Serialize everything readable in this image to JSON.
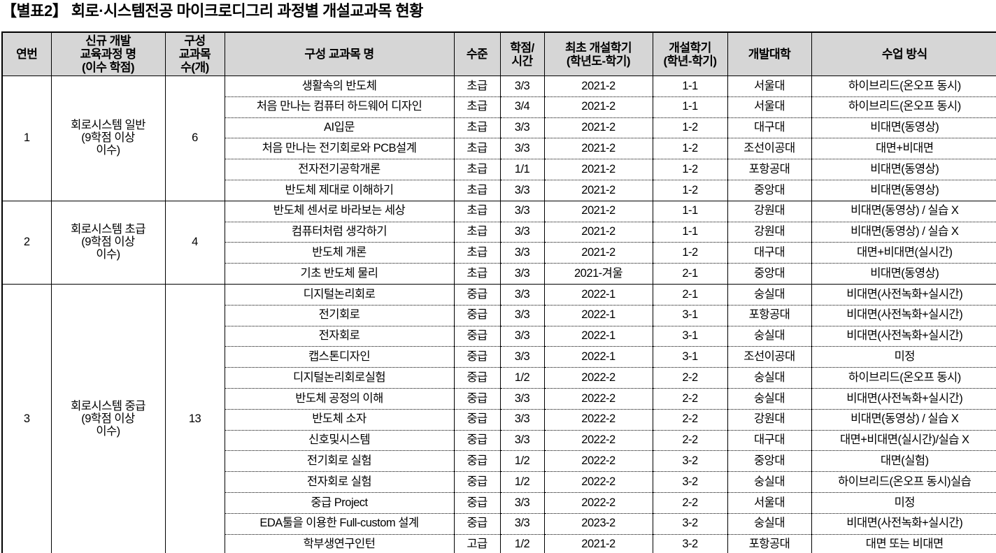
{
  "title": "【별표2】 회로·시스템전공 마이크로디그리 과정별 개설교과목 현황",
  "colors": {
    "header_bg": "#d6d6d6",
    "border": "#000000",
    "text": "#000000",
    "page_bg": "#ffffff"
  },
  "table": {
    "headers": [
      "연번",
      "신규 개발\n교육과정 명\n(이수 학점)",
      "구성\n교과목\n수(개)",
      "구성 교과목 명",
      "수준",
      "학점/\n시간",
      "최초 개설학기\n(학년도-학기)",
      "개설학기\n(학년-학기)",
      "개발대학",
      "수업 방식"
    ],
    "groups": [
      {
        "no": "1",
        "program": "회로시스템 일반\n(9학점 이상\n이수)",
        "count": "6",
        "courses": [
          {
            "name": "생활속의 반도체",
            "level": "초급",
            "credit": "3/3",
            "first": "2021-2",
            "term": "1-1",
            "univ": "서울대",
            "method": "하이브리드(온오프 동시)"
          },
          {
            "name": "처음 만나는 컴퓨터 하드웨어 디자인",
            "level": "초급",
            "credit": "3/4",
            "first": "2021-2",
            "term": "1-1",
            "univ": "서울대",
            "method": "하이브리드(온오프 동시)"
          },
          {
            "name": "AI입문",
            "level": "초급",
            "credit": "3/3",
            "first": "2021-2",
            "term": "1-2",
            "univ": "대구대",
            "method": "비대면(동영상)"
          },
          {
            "name": "처음 만나는 전기회로와 PCB설계",
            "level": "초급",
            "credit": "3/3",
            "first": "2021-2",
            "term": "1-2",
            "univ": "조선이공대",
            "method": "대면+비대면"
          },
          {
            "name": "전자전기공학개론",
            "level": "초급",
            "credit": "1/1",
            "first": "2021-2",
            "term": "1-2",
            "univ": "포항공대",
            "method": "비대면(동영상)"
          },
          {
            "name": "반도체 제대로 이해하기",
            "level": "초급",
            "credit": "3/3",
            "first": "2021-2",
            "term": "1-2",
            "univ": "중앙대",
            "method": "비대면(동영상)"
          }
        ]
      },
      {
        "no": "2",
        "program": "회로시스템 초급\n(9학점 이상\n이수)",
        "count": "4",
        "courses": [
          {
            "name": "반도체 센서로 바라보는 세상",
            "level": "초급",
            "credit": "3/3",
            "first": "2021-2",
            "term": "1-1",
            "univ": "강원대",
            "method": "비대면(동영상) / 실습 X"
          },
          {
            "name": "컴퓨터처럼 생각하기",
            "level": "초급",
            "credit": "3/3",
            "first": "2021-2",
            "term": "1-1",
            "univ": "강원대",
            "method": "비대면(동영상) / 실습 X"
          },
          {
            "name": "반도체 개론",
            "level": "초급",
            "credit": "3/3",
            "first": "2021-2",
            "term": "1-2",
            "univ": "대구대",
            "method": "대면+비대면(실시간)"
          },
          {
            "name": "기초 반도체 물리",
            "level": "초급",
            "credit": "3/3",
            "first": "2021-겨울",
            "term": "2-1",
            "univ": "중앙대",
            "method": "비대면(동영상)"
          }
        ]
      },
      {
        "no": "3",
        "program": "회로시스템 중급\n(9학점 이상\n이수)",
        "count": "13",
        "courses": [
          {
            "name": "디지털논리회로",
            "level": "중급",
            "credit": "3/3",
            "first": "2022-1",
            "term": "2-1",
            "univ": "숭실대",
            "method": "비대면(사전녹화+실시간)"
          },
          {
            "name": "전기회로",
            "level": "중급",
            "credit": "3/3",
            "first": "2022-1",
            "term": "3-1",
            "univ": "포항공대",
            "method": "비대면(사전녹화+실시간)"
          },
          {
            "name": "전자회로",
            "level": "중급",
            "credit": "3/3",
            "first": "2022-1",
            "term": "3-1",
            "univ": "숭실대",
            "method": "비대면(사전녹화+실시간)"
          },
          {
            "name": "캡스톤디자인",
            "level": "중급",
            "credit": "3/3",
            "first": "2022-1",
            "term": "3-1",
            "univ": "조선이공대",
            "method": "미정"
          },
          {
            "name": "디지털논리회로실험",
            "level": "중급",
            "credit": "1/2",
            "first": "2022-2",
            "term": "2-2",
            "univ": "숭실대",
            "method": "하이브리드(온오프 동시)"
          },
          {
            "name": "반도체 공정의 이해",
            "level": "중급",
            "credit": "3/3",
            "first": "2022-2",
            "term": "2-2",
            "univ": "숭실대",
            "method": "비대면(사전녹화+실시간)"
          },
          {
            "name": "반도체 소자",
            "level": "중급",
            "credit": "3/3",
            "first": "2022-2",
            "term": "2-2",
            "univ": "강원대",
            "method": "비대면(동영상) / 실습 X"
          },
          {
            "name": "신호및시스템",
            "level": "중급",
            "credit": "3/3",
            "first": "2022-2",
            "term": "2-2",
            "univ": "대구대",
            "method": "대면+비대면(실시간)/실습 X"
          },
          {
            "name": "전기회로 실험",
            "level": "중급",
            "credit": "1/2",
            "first": "2022-2",
            "term": "3-2",
            "univ": "중앙대",
            "method": "대면(실험)"
          },
          {
            "name": "전자회로 실험",
            "level": "중급",
            "credit": "1/2",
            "first": "2022-2",
            "term": "3-2",
            "univ": "숭실대",
            "method": "하이브리드(온오프 동시)실습"
          },
          {
            "name": "중급 Project",
            "level": "중급",
            "credit": "3/3",
            "first": "2022-2",
            "term": "2-2",
            "univ": "서울대",
            "method": "미정"
          },
          {
            "name": "EDA툴을 이용한 Full-custom 설계",
            "level": "중급",
            "credit": "3/3",
            "first": "2023-2",
            "term": "3-2",
            "univ": "숭실대",
            "method": "비대면(사전녹화+실시간)"
          },
          {
            "name": "학부생연구인턴",
            "level": "고급",
            "credit": "1/2",
            "first": "2021-2",
            "term": "3-2",
            "univ": "포항공대",
            "method": "대면 또는 비대면"
          }
        ]
      }
    ]
  }
}
